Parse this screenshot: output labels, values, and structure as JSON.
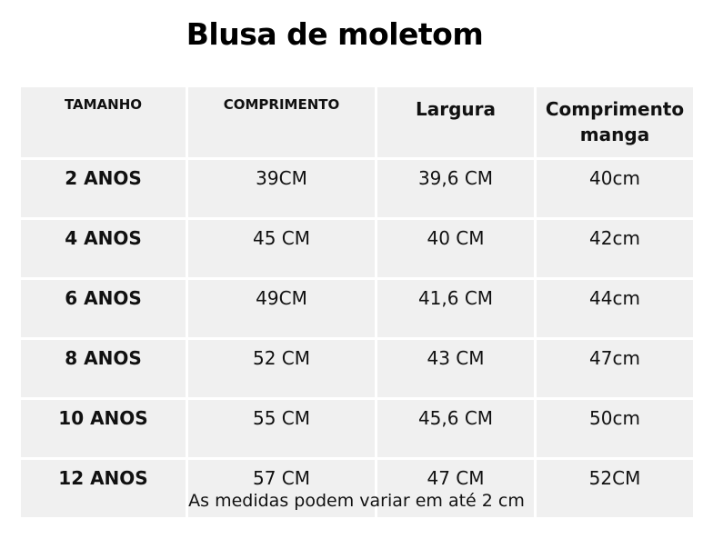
{
  "title": "Blusa de moletom",
  "table": {
    "headers": [
      "TAMANHO",
      "COMPRIMENTO",
      "Largura",
      "Comprimento manga"
    ],
    "rows": [
      {
        "size": "2 ANOS",
        "comprimento": "39CM",
        "largura": "39,6 CM",
        "manga": "40cm"
      },
      {
        "size": "4 ANOS",
        "comprimento": "45 CM",
        "largura": "40 CM",
        "manga": "42cm"
      },
      {
        "size": "6 ANOS",
        "comprimento": "49CM",
        "largura": "41,6 CM",
        "manga": "44cm"
      },
      {
        "size": "8 ANOS",
        "comprimento": "52 CM",
        "largura": "43 CM",
        "manga": "47cm"
      },
      {
        "size": "10 ANOS",
        "comprimento": "55 CM",
        "largura": "45,6 CM",
        "manga": "50cm"
      },
      {
        "size": "12 ANOS",
        "comprimento": "57 CM",
        "largura": "47 CM",
        "manga": "52CM"
      }
    ]
  },
  "footnote": "As medidas podem variar em até 2 cm"
}
